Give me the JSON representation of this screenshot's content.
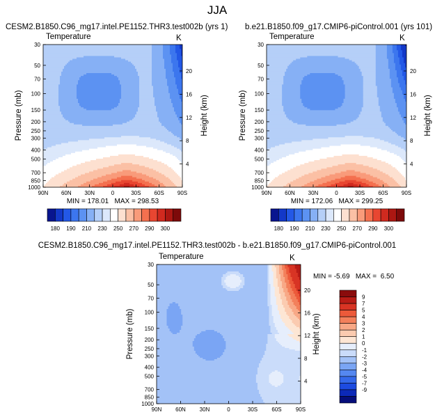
{
  "page": {
    "title": "JJA"
  },
  "colors": {
    "abs_scale": [
      "#08158f",
      "#1338c8",
      "#2358e6",
      "#3c76ee",
      "#5c92f2",
      "#86b0f5",
      "#b5cff8",
      "#dce8fb",
      "#ffffff",
      "#fde0d0",
      "#fbc0a5",
      "#f99b7a",
      "#f4704f",
      "#e84631",
      "#d02a1f",
      "#ac1712",
      "#7d0a0a"
    ],
    "diff_scale": [
      "#050e7a",
      "#0c29b8",
      "#1d4be0",
      "#3569ea",
      "#5588f0",
      "#7aa5f4",
      "#a3c2f7",
      "#cadcfa",
      "#e6eefc",
      "#fde6d4",
      "#fbcbb0",
      "#f8a886",
      "#f3805b",
      "#ec5a3a",
      "#d83424",
      "#b81c16",
      "#8a0c0c"
    ]
  },
  "chart_data": [
    {
      "type": "heatmap",
      "id": "panel1",
      "title": "CESM2.B1850.C96_mg17.intel.PE1152.THR3.test002b (yrs 1)",
      "variable": "Temperature",
      "units": "K",
      "xlabel": "",
      "ylabel": "Pressure (mb)",
      "y2label": "Height (km)",
      "x_ticks": [
        "90N",
        "60N",
        "30N",
        "0",
        "30S",
        "60S",
        "90S"
      ],
      "y_ticks": [
        "30",
        "50",
        "70",
        "100",
        "150",
        "200",
        "250",
        "300",
        "400",
        "500",
        "700",
        "850",
        "1000"
      ],
      "y2_ticks": [
        "20",
        "16",
        "12",
        "8",
        "4"
      ],
      "min": "178.01",
      "max": "298.53",
      "stats_text": "MIN = 178.01   MAX = 298.53",
      "colorbar_labels": [
        "180",
        "190",
        "210",
        "230",
        "250",
        "270",
        "290",
        "300"
      ]
    },
    {
      "type": "heatmap",
      "id": "panel2",
      "title": "b.e21.B1850.f09_g17.CMIP6-piControl.001 (yrs 101)",
      "variable": "Temperature",
      "units": "K",
      "xlabel": "",
      "ylabel": "Pressure (mb)",
      "y2label": "Height (km)",
      "x_ticks": [
        "90N",
        "60N",
        "30N",
        "0",
        "30S",
        "60S",
        "90S"
      ],
      "y_ticks": [
        "30",
        "50",
        "70",
        "100",
        "150",
        "200",
        "250",
        "300",
        "400",
        "500",
        "700",
        "850",
        "1000"
      ],
      "y2_ticks": [
        "20",
        "16",
        "12",
        "8",
        "4"
      ],
      "min": "172.06",
      "max": "299.25",
      "stats_text": "MIN = 172.06   MAX = 299.25",
      "colorbar_labels": [
        "180",
        "190",
        "210",
        "230",
        "250",
        "270",
        "290",
        "300"
      ]
    },
    {
      "type": "heatmap",
      "id": "panel3",
      "title": "CESM2.B1850.C96_mg17.intel.PE1152.THR3.test002b - b.e21.B1850.f09_g17.CMIP6-piControl.001",
      "variable": "Temperature",
      "units": "K",
      "xlabel": "",
      "ylabel": "Pressure (mb)",
      "y2label": "Height (km)",
      "x_ticks": [
        "90N",
        "60N",
        "30N",
        "0",
        "30S",
        "60S",
        "90S"
      ],
      "y_ticks": [
        "30",
        "50",
        "70",
        "100",
        "150",
        "200",
        "250",
        "300",
        "400",
        "500",
        "700",
        "850",
        "1000"
      ],
      "y2_ticks": [
        "20",
        "16",
        "12",
        "8",
        "4"
      ],
      "min": "-5.69",
      "max": "6.50",
      "stats_text": "MIN = -5.69   MAX =  6.50",
      "colorbar_labels": [
        "9",
        "7",
        "5",
        "4",
        "3",
        "2",
        "1",
        "0",
        "-1",
        "-2",
        "-3",
        "-4",
        "-5",
        "-7",
        "-9"
      ]
    }
  ]
}
